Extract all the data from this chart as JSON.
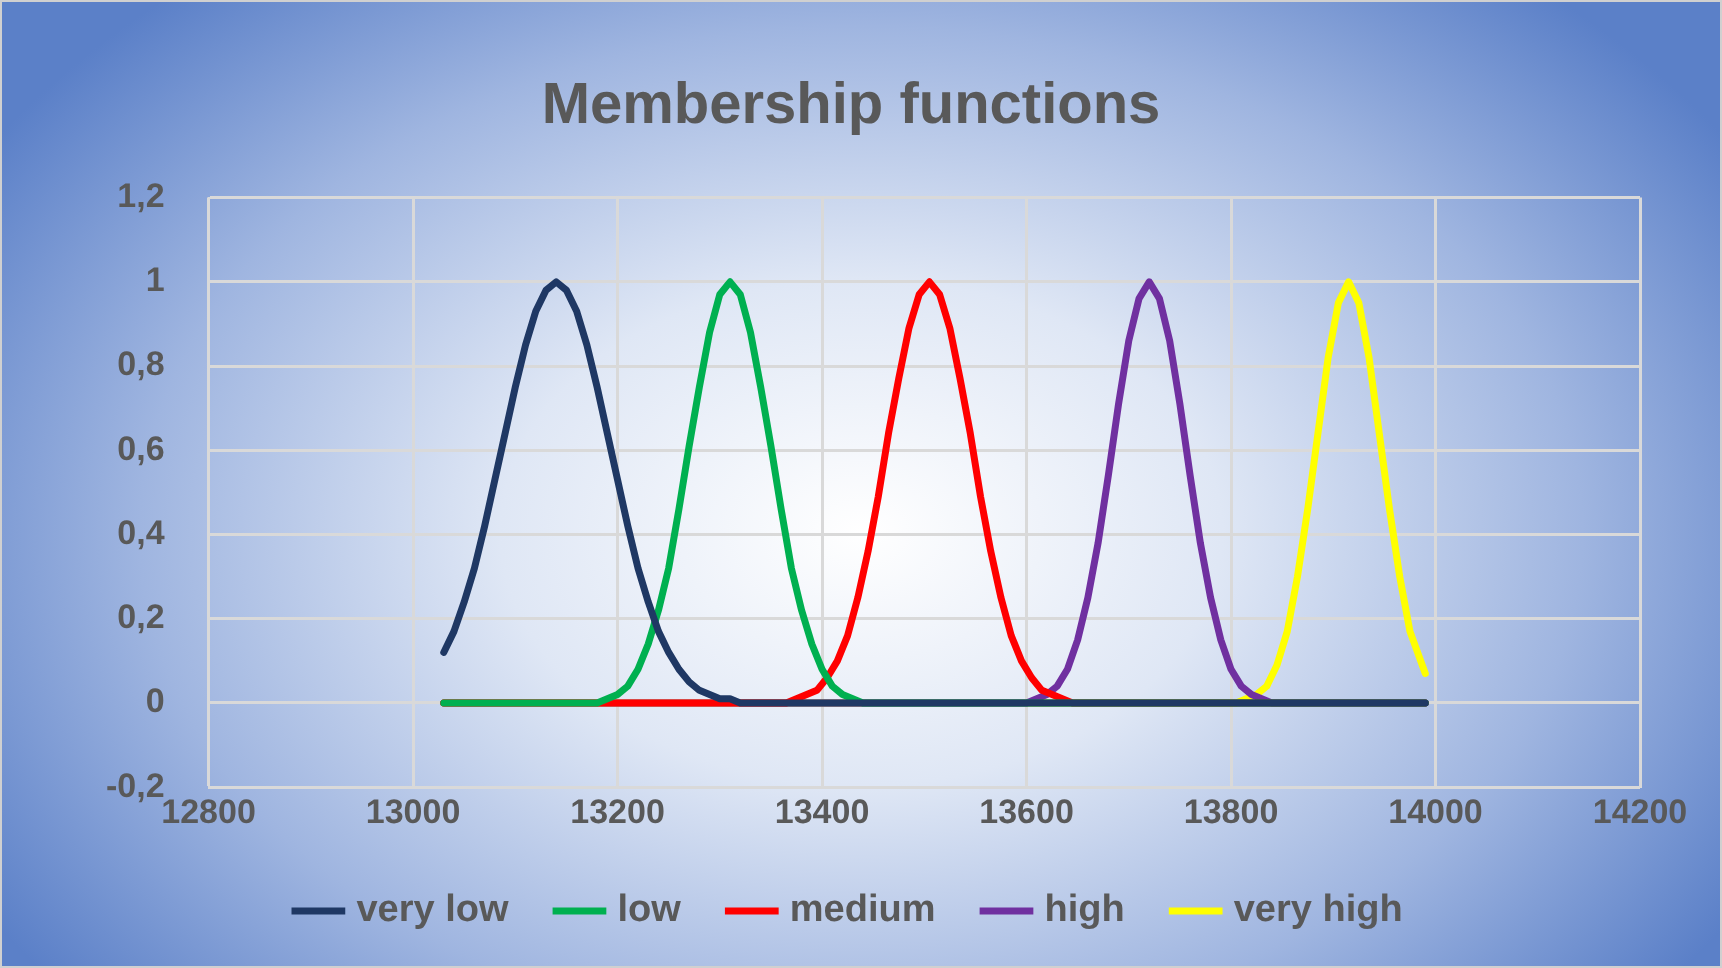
{
  "chart_data": {
    "type": "line",
    "title": "Membership functions",
    "xlim": [
      12800,
      14200
    ],
    "xticks": [
      12800,
      13000,
      13200,
      13400,
      13600,
      13800,
      14000,
      14200
    ],
    "ylim": [
      -0.2,
      1.2
    ],
    "yticks": [
      {
        "value": -0.2,
        "label": "-0,2"
      },
      0,
      {
        "value": 0.2,
        "label": "0,2"
      },
      {
        "value": 0.4,
        "label": "0,4"
      },
      {
        "value": 0.6,
        "label": "0,6"
      },
      {
        "value": 0.8,
        "label": "0,8"
      },
      1,
      {
        "value": 1.2,
        "label": "1,2"
      }
    ],
    "grid": true,
    "legend": "bottom",
    "marker": "none",
    "line_style": "solid",
    "series": [
      {
        "name": "very low",
        "color": "#1f3864",
        "x": [
          13030,
          13040,
          13050,
          13060,
          13070,
          13080,
          13090,
          13100,
          13110,
          13120,
          13130,
          13140,
          13150,
          13160,
          13170,
          13180,
          13190,
          13200,
          13210,
          13220,
          13230,
          13240,
          13250,
          13260,
          13270,
          13280,
          13290,
          13300,
          13310,
          13320,
          13990
        ],
        "values": [
          0.12,
          0.17,
          0.24,
          0.32,
          0.42,
          0.53,
          0.64,
          0.75,
          0.85,
          0.93,
          0.98,
          1,
          0.98,
          0.93,
          0.85,
          0.75,
          0.64,
          0.53,
          0.42,
          0.32,
          0.24,
          0.17,
          0.12,
          0.08,
          0.05,
          0.03,
          0.02,
          0.01,
          0.01,
          0,
          0
        ]
      },
      {
        "name": "low",
        "color": "#00b050",
        "x": [
          13030,
          13180,
          13190,
          13200,
          13210,
          13220,
          13230,
          13240,
          13250,
          13260,
          13270,
          13280,
          13290,
          13300,
          13310,
          13320,
          13330,
          13340,
          13350,
          13360,
          13370,
          13380,
          13390,
          13400,
          13410,
          13420,
          13430,
          13440,
          13990
        ],
        "values": [
          0,
          0,
          0.01,
          0.02,
          0.04,
          0.08,
          0.14,
          0.22,
          0.32,
          0.46,
          0.61,
          0.75,
          0.88,
          0.97,
          1,
          0.97,
          0.88,
          0.75,
          0.61,
          0.46,
          0.32,
          0.22,
          0.14,
          0.08,
          0.04,
          0.02,
          0.01,
          0,
          0
        ]
      },
      {
        "name": "medium",
        "color": "#ff0000",
        "x": [
          13030,
          13365,
          13375,
          13385,
          13395,
          13405,
          13415,
          13425,
          13435,
          13445,
          13455,
          13465,
          13475,
          13485,
          13495,
          13505,
          13515,
          13525,
          13535,
          13545,
          13555,
          13565,
          13575,
          13585,
          13595,
          13605,
          13615,
          13625,
          13635,
          13645,
          13990
        ],
        "values": [
          0,
          0,
          0.01,
          0.02,
          0.03,
          0.06,
          0.1,
          0.16,
          0.25,
          0.36,
          0.49,
          0.64,
          0.77,
          0.89,
          0.97,
          1,
          0.97,
          0.89,
          0.77,
          0.64,
          0.49,
          0.36,
          0.25,
          0.16,
          0.1,
          0.06,
          0.03,
          0.02,
          0.01,
          0,
          0
        ]
      },
      {
        "name": "high",
        "color": "#7030a0",
        "x": [
          13030,
          13600,
          13610,
          13620,
          13630,
          13640,
          13650,
          13660,
          13670,
          13680,
          13690,
          13700,
          13710,
          13720,
          13730,
          13740,
          13750,
          13760,
          13770,
          13780,
          13790,
          13800,
          13810,
          13820,
          13830,
          13840,
          13990
        ],
        "values": [
          0,
          0,
          0.01,
          0.02,
          0.04,
          0.08,
          0.15,
          0.25,
          0.38,
          0.54,
          0.71,
          0.86,
          0.96,
          1,
          0.96,
          0.86,
          0.71,
          0.54,
          0.38,
          0.25,
          0.15,
          0.08,
          0.04,
          0.02,
          0.01,
          0,
          0
        ]
      },
      {
        "name": "very high",
        "color": "#ffff00",
        "x": [
          13030,
          13805,
          13815,
          13825,
          13835,
          13845,
          13855,
          13865,
          13875,
          13885,
          13895,
          13905,
          13915,
          13925,
          13935,
          13945,
          13955,
          13965,
          13975,
          13990
        ],
        "values": [
          0,
          0,
          0.01,
          0.02,
          0.04,
          0.09,
          0.17,
          0.3,
          0.46,
          0.64,
          0.82,
          0.95,
          1,
          0.95,
          0.82,
          0.64,
          0.46,
          0.3,
          0.17,
          0.07
        ]
      }
    ]
  }
}
